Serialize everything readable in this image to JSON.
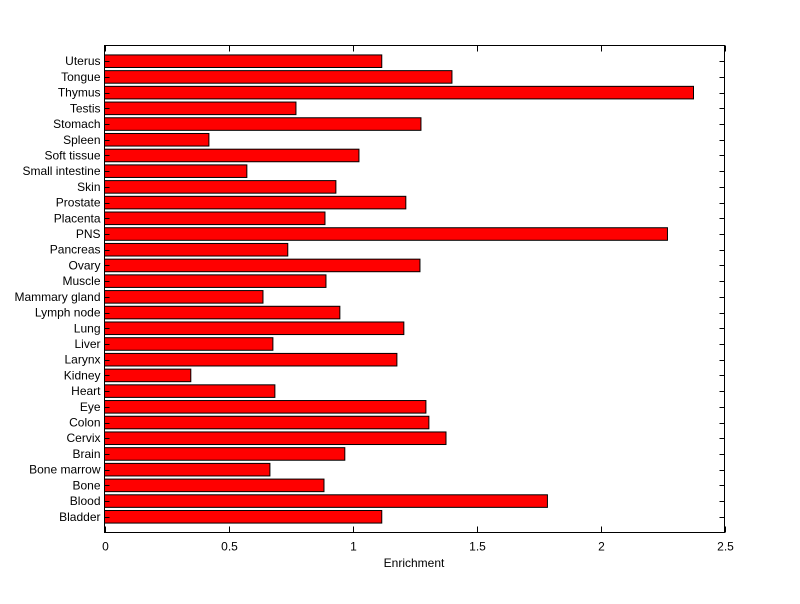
{
  "chart_data": {
    "type": "bar",
    "orientation": "horizontal",
    "title": "",
    "xlabel": "Enrichment",
    "ylabel": "",
    "xlim": [
      0,
      2.5
    ],
    "xticks": [
      "0",
      "0.5",
      "1",
      "1.5",
      "2",
      "2.5"
    ],
    "xtick_values": [
      0,
      0.5,
      1,
      1.5,
      2,
      2.5
    ],
    "grid": false,
    "bar_color": "#ff0000",
    "edge_color": "#000000",
    "categories": [
      "Uterus",
      "Tongue",
      "Thymus",
      "Testis",
      "Stomach",
      "Spleen",
      "Soft tissue",
      "Small intestine",
      "Skin",
      "Prostate",
      "Placenta",
      "PNS",
      "Pancreas",
      "Ovary",
      "Muscle",
      "Mammary gland",
      "Lymph node",
      "Lung",
      "Liver",
      "Larynx",
      "Kidney",
      "Heart",
      "Eye",
      "Colon",
      "Cervix",
      "Brain",
      "Bone marrow",
      "Bone",
      "Blood",
      "Bladder"
    ],
    "values": [
      1.118,
      1.401,
      2.375,
      0.772,
      1.276,
      0.421,
      1.026,
      0.574,
      0.933,
      1.215,
      0.889,
      2.27,
      0.739,
      1.272,
      0.893,
      0.639,
      0.949,
      1.207,
      0.679,
      1.179,
      0.348,
      0.687,
      1.296,
      1.308,
      1.377,
      0.969,
      0.667,
      0.885,
      1.786,
      1.118
    ]
  }
}
